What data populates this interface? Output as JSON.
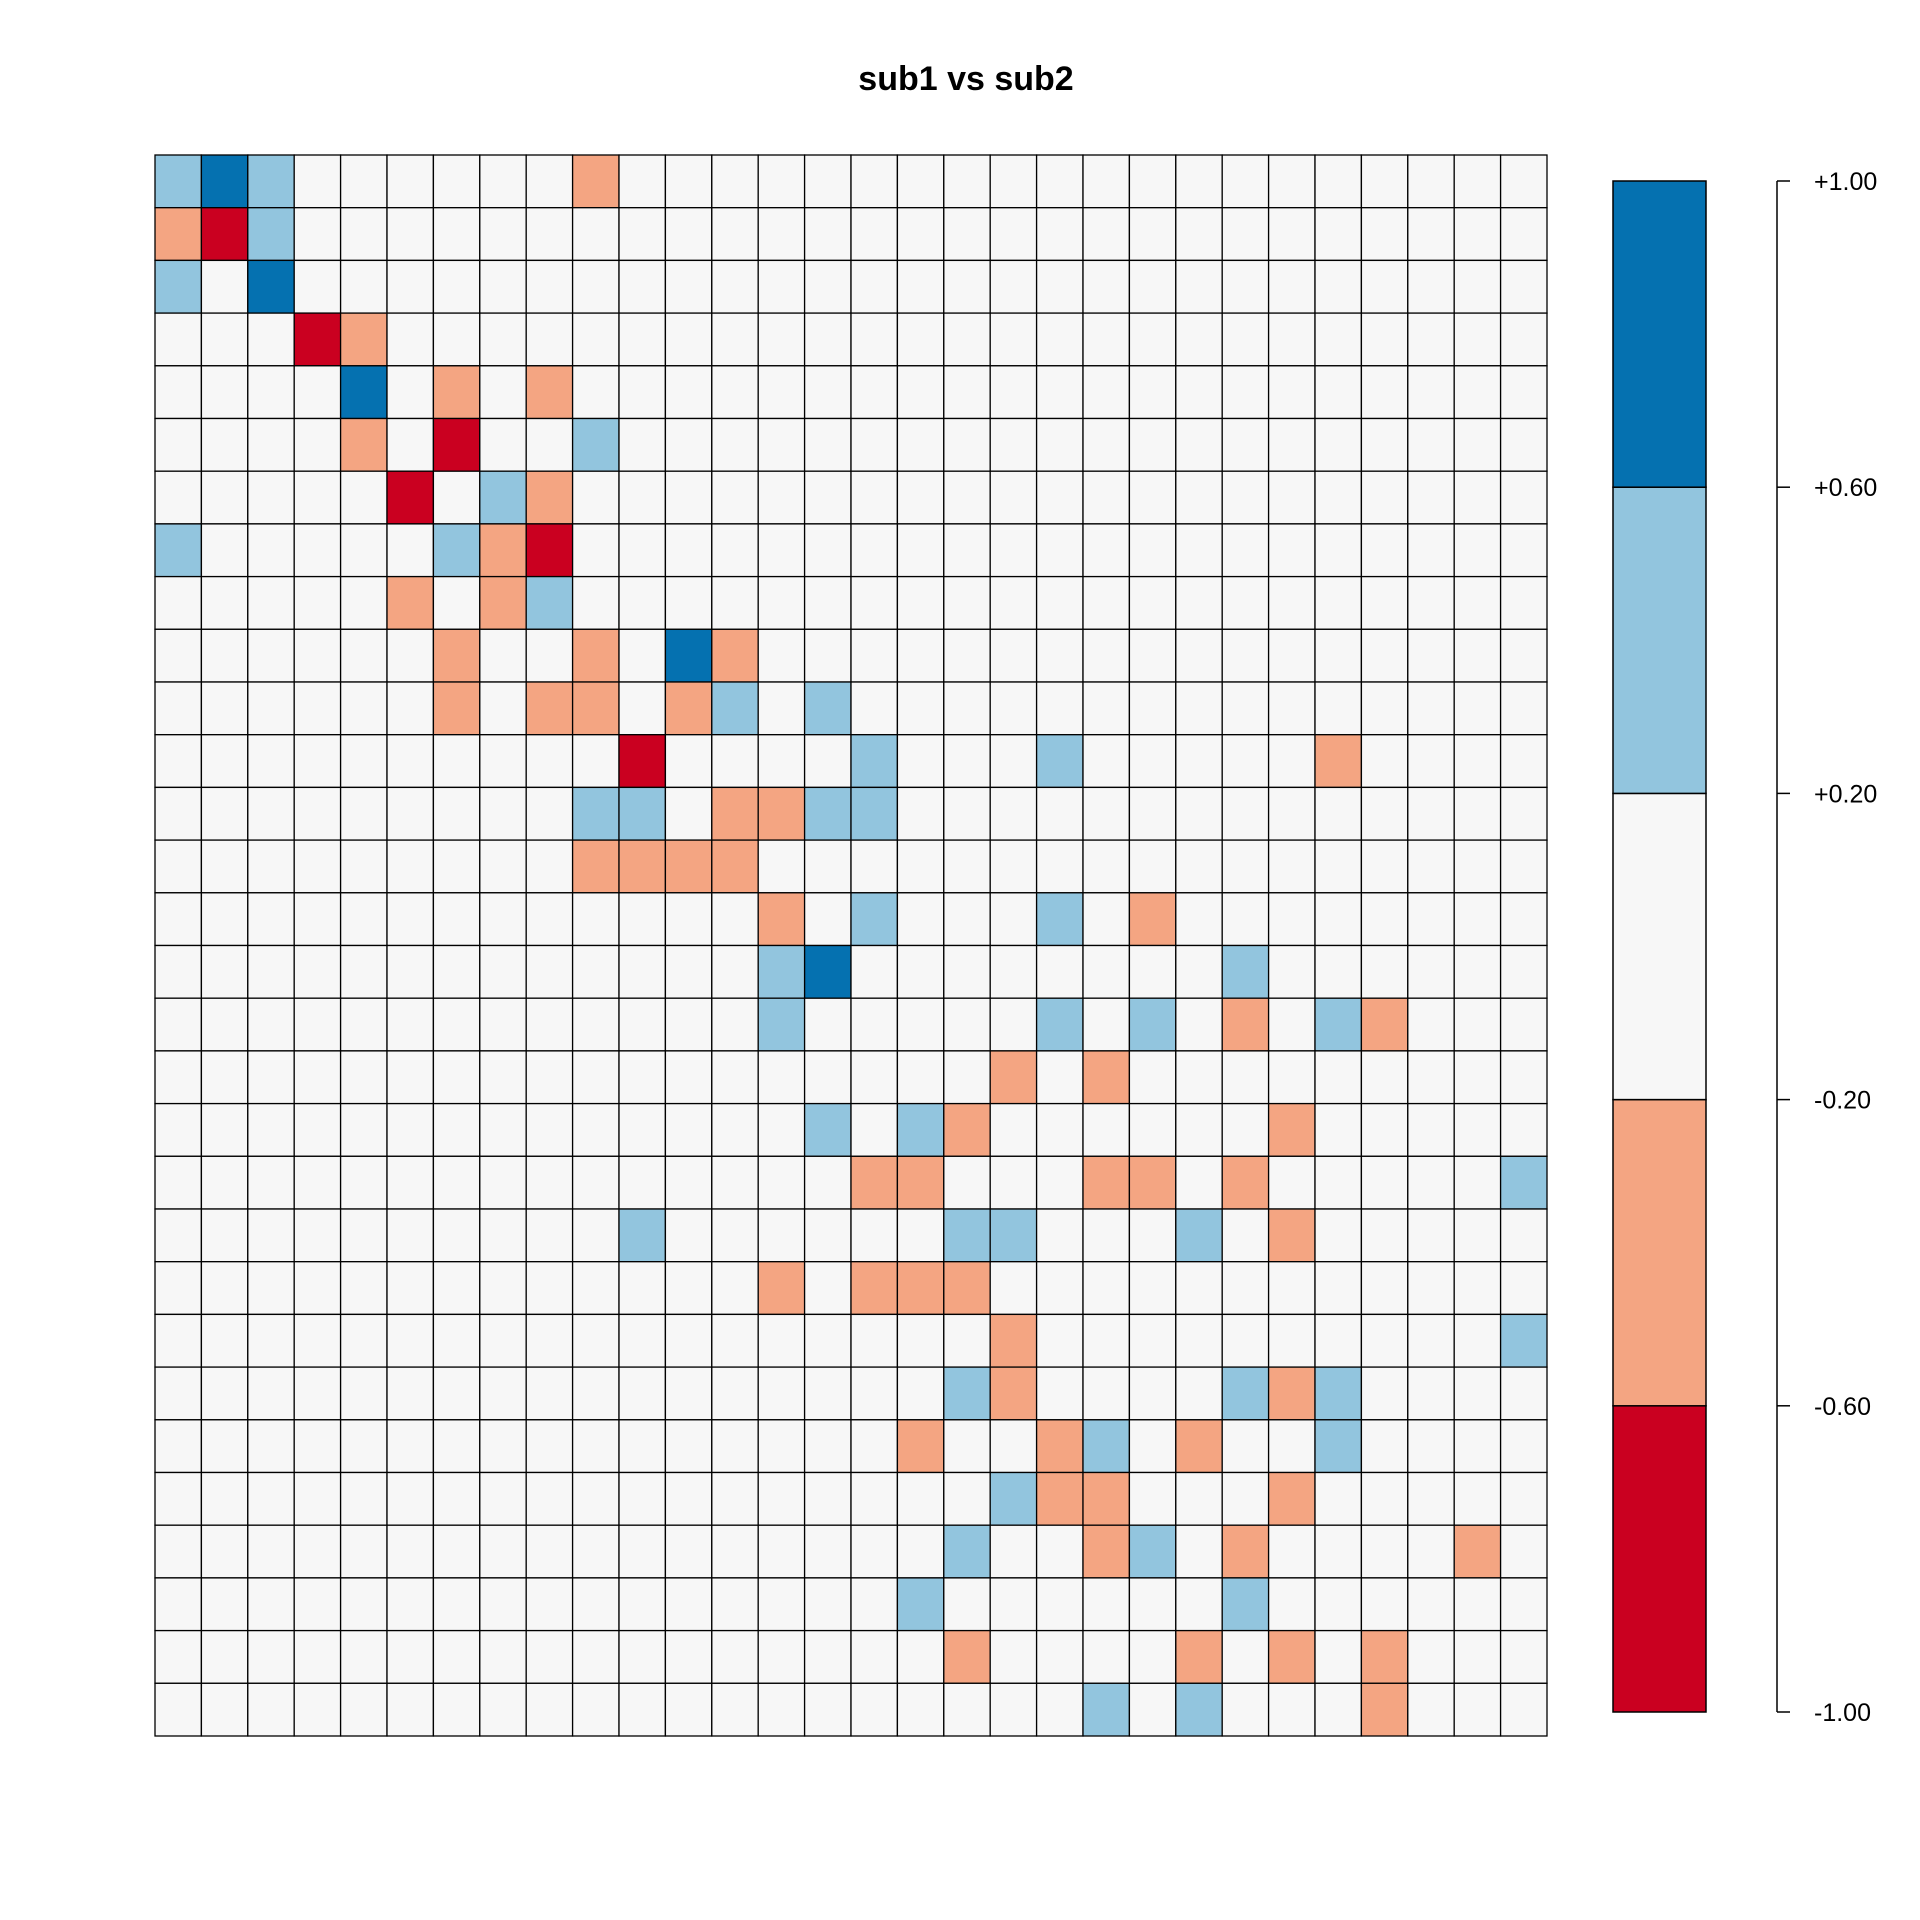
{
  "chart_data": {
    "type": "heatmap",
    "title": "sub1 vs sub2",
    "rows": 30,
    "cols": 30,
    "levels": [
      {
        "from": -1.0,
        "to": -0.6,
        "color": "#CA0020"
      },
      {
        "from": -0.6,
        "to": -0.2,
        "color": "#F4A582"
      },
      {
        "from": -0.2,
        "to": 0.2,
        "color": "#F7F7F7"
      },
      {
        "from": 0.2,
        "to": 0.6,
        "color": "#92C5DE"
      },
      {
        "from": 0.6,
        "to": 1.0,
        "color": "#0571B0"
      }
    ],
    "matrix": [
      [
        0.4,
        0.8,
        0.4,
        0,
        0,
        0,
        0,
        0,
        0,
        -0.4,
        0,
        0,
        0,
        0,
        0,
        0,
        0,
        0,
        0,
        0,
        0,
        0,
        0,
        0,
        0,
        0,
        0,
        0,
        0,
        0
      ],
      [
        -0.4,
        -0.8,
        0.4,
        0,
        0,
        0,
        0,
        0,
        0,
        0,
        0,
        0,
        0,
        0,
        0,
        0,
        0,
        0,
        0,
        0,
        0,
        0,
        0,
        0,
        0,
        0,
        0,
        0,
        0,
        0
      ],
      [
        0.4,
        0,
        0.8,
        0,
        0,
        0,
        0,
        0,
        0,
        0,
        0,
        0,
        0,
        0,
        0,
        0,
        0,
        0,
        0,
        0,
        0,
        0,
        0,
        0,
        0,
        0,
        0,
        0,
        0,
        0
      ],
      [
        0,
        0,
        0,
        -0.8,
        -0.4,
        0,
        0,
        0,
        0,
        0,
        0,
        0,
        0,
        0,
        0,
        0,
        0,
        0,
        0,
        0,
        0,
        0,
        0,
        0,
        0,
        0,
        0,
        0,
        0,
        0
      ],
      [
        0,
        0,
        0,
        0,
        0.8,
        0,
        -0.4,
        0,
        -0.4,
        0,
        0,
        0,
        0,
        0,
        0,
        0,
        0,
        0,
        0,
        0,
        0,
        0,
        0,
        0,
        0,
        0,
        0,
        0,
        0,
        0
      ],
      [
        0,
        0,
        0,
        0,
        -0.4,
        0,
        -0.8,
        0,
        0,
        0.4,
        0,
        0,
        0,
        0,
        0,
        0,
        0,
        0,
        0,
        0,
        0,
        0,
        0,
        0,
        0,
        0,
        0,
        0,
        0,
        0
      ],
      [
        0,
        0,
        0,
        0,
        0,
        -0.8,
        0,
        0.4,
        -0.4,
        0,
        0,
        0,
        0,
        0,
        0,
        0,
        0,
        0,
        0,
        0,
        0,
        0,
        0,
        0,
        0,
        0,
        0,
        0,
        0,
        0
      ],
      [
        0.4,
        0,
        0,
        0,
        0,
        0,
        0.4,
        -0.4,
        -0.8,
        0,
        0,
        0,
        0,
        0,
        0,
        0,
        0,
        0,
        0,
        0,
        0,
        0,
        0,
        0,
        0,
        0,
        0,
        0,
        0,
        0
      ],
      [
        0,
        0,
        0,
        0,
        0,
        -0.4,
        0,
        -0.4,
        0.4,
        0,
        0,
        0,
        0,
        0,
        0,
        0,
        0,
        0,
        0,
        0,
        0,
        0,
        0,
        0,
        0,
        0,
        0,
        0,
        0,
        0
      ],
      [
        0,
        0,
        0,
        0,
        0,
        0,
        -0.4,
        0,
        0,
        -0.4,
        0,
        0.8,
        -0.4,
        0,
        0,
        0,
        0,
        0,
        0,
        0,
        0,
        0,
        0,
        0,
        0,
        0,
        0,
        0,
        0,
        0
      ],
      [
        0,
        0,
        0,
        0,
        0,
        0,
        -0.4,
        0,
        -0.4,
        -0.4,
        0,
        -0.4,
        0.4,
        0,
        0.4,
        0,
        0,
        0,
        0,
        0,
        0,
        0,
        0,
        0,
        0,
        0,
        0,
        0,
        0,
        0
      ],
      [
        0,
        0,
        0,
        0,
        0,
        0,
        0,
        0,
        0,
        0,
        -0.8,
        0,
        0,
        0,
        0,
        0.4,
        0,
        0,
        0,
        0.4,
        0,
        0,
        0,
        0,
        0,
        -0.4,
        0,
        0,
        0,
        0
      ],
      [
        0,
        0,
        0,
        0,
        0,
        0,
        0,
        0,
        0,
        0.4,
        0.4,
        0,
        -0.4,
        -0.4,
        0.4,
        0.4,
        0,
        0,
        0,
        0,
        0,
        0,
        0,
        0,
        0,
        0,
        0,
        0,
        0,
        0
      ],
      [
        0,
        0,
        0,
        0,
        0,
        0,
        0,
        0,
        0,
        -0.4,
        -0.4,
        -0.4,
        -0.4,
        0,
        0,
        0,
        0,
        0,
        0,
        0,
        0,
        0,
        0,
        0,
        0,
        0,
        0,
        0,
        0,
        0
      ],
      [
        0,
        0,
        0,
        0,
        0,
        0,
        0,
        0,
        0,
        0,
        0,
        0,
        0,
        -0.4,
        0,
        0.4,
        0,
        0,
        0,
        0.4,
        0,
        -0.4,
        0,
        0,
        0,
        0,
        0,
        0,
        0,
        0
      ],
      [
        0,
        0,
        0,
        0,
        0,
        0,
        0,
        0,
        0,
        0,
        0,
        0,
        0,
        0.4,
        0.8,
        0,
        0,
        0,
        0,
        0,
        0,
        0,
        0,
        0.4,
        0,
        0,
        0,
        0,
        0,
        0
      ],
      [
        0,
        0,
        0,
        0,
        0,
        0,
        0,
        0,
        0,
        0,
        0,
        0,
        0,
        0.4,
        0,
        0,
        0,
        0,
        0,
        0.4,
        0,
        0.4,
        0,
        -0.4,
        0,
        0.4,
        -0.4,
        0,
        0,
        0
      ],
      [
        0,
        0,
        0,
        0,
        0,
        0,
        0,
        0,
        0,
        0,
        0,
        0,
        0,
        0,
        0,
        0,
        0,
        0,
        -0.4,
        0,
        -0.4,
        0,
        0,
        0,
        0,
        0,
        0,
        0,
        0,
        0
      ],
      [
        0,
        0,
        0,
        0,
        0,
        0,
        0,
        0,
        0,
        0,
        0,
        0,
        0,
        0,
        0.4,
        0,
        0.4,
        -0.4,
        0,
        0,
        0,
        0,
        0,
        0,
        -0.4,
        0,
        0,
        0,
        0,
        0
      ],
      [
        0,
        0,
        0,
        0,
        0,
        0,
        0,
        0,
        0,
        0,
        0,
        0,
        0,
        0,
        0,
        -0.4,
        -0.4,
        0,
        0,
        0,
        -0.4,
        -0.4,
        0,
        -0.4,
        0,
        0,
        0,
        0,
        0,
        0.4
      ],
      [
        0,
        0,
        0,
        0,
        0,
        0,
        0,
        0,
        0,
        0,
        0.4,
        0,
        0,
        0,
        0,
        0,
        0,
        0.4,
        0.4,
        0,
        0,
        0,
        0.4,
        0,
        -0.4,
        0,
        0,
        0,
        0,
        0
      ],
      [
        0,
        0,
        0,
        0,
        0,
        0,
        0,
        0,
        0,
        0,
        0,
        0,
        0,
        -0.4,
        0,
        -0.4,
        -0.4,
        -0.4,
        0,
        0,
        0,
        0,
        0,
        0,
        0,
        0,
        0,
        0,
        0,
        0
      ],
      [
        0,
        0,
        0,
        0,
        0,
        0,
        0,
        0,
        0,
        0,
        0,
        0,
        0,
        0,
        0,
        0,
        0,
        0,
        -0.4,
        0,
        0,
        0,
        0,
        0,
        0,
        0,
        0,
        0,
        0,
        0.4
      ],
      [
        0,
        0,
        0,
        0,
        0,
        0,
        0,
        0,
        0,
        0,
        0,
        0,
        0,
        0,
        0,
        0,
        0,
        0.4,
        -0.4,
        0,
        0,
        0,
        0,
        0.4,
        -0.4,
        0.4,
        0,
        0,
        0,
        0
      ],
      [
        0,
        0,
        0,
        0,
        0,
        0,
        0,
        0,
        0,
        0,
        0,
        0,
        0,
        0,
        0,
        0,
        -0.4,
        0,
        0,
        -0.4,
        0.4,
        0,
        -0.4,
        0,
        0,
        0.4,
        0,
        0,
        0,
        0
      ],
      [
        0,
        0,
        0,
        0,
        0,
        0,
        0,
        0,
        0,
        0,
        0,
        0,
        0,
        0,
        0,
        0,
        0,
        0,
        0.4,
        -0.4,
        -0.4,
        0,
        0,
        0,
        -0.4,
        0,
        0,
        0,
        0,
        0
      ],
      [
        0,
        0,
        0,
        0,
        0,
        0,
        0,
        0,
        0,
        0,
        0,
        0,
        0,
        0,
        0,
        0,
        0,
        0.4,
        0,
        0,
        -0.4,
        0.4,
        0,
        -0.4,
        0,
        0,
        0,
        0,
        -0.4,
        0
      ],
      [
        0,
        0,
        0,
        0,
        0,
        0,
        0,
        0,
        0,
        0,
        0,
        0,
        0,
        0,
        0,
        0,
        0.4,
        0,
        0,
        0,
        0,
        0,
        0,
        0.4,
        0,
        0,
        0,
        0,
        0,
        0
      ],
      [
        0,
        0,
        0,
        0,
        0,
        0,
        0,
        0,
        0,
        0,
        0,
        0,
        0,
        0,
        0,
        0,
        0,
        -0.4,
        0,
        0,
        0,
        0,
        -0.4,
        0,
        -0.4,
        0,
        -0.4,
        0,
        0,
        0
      ],
      [
        0,
        0,
        0,
        0,
        0,
        0,
        0,
        0,
        0,
        0,
        0,
        0,
        0,
        0,
        0,
        0,
        0,
        0,
        0,
        0,
        0.4,
        0,
        0.4,
        0,
        0,
        0,
        -0.4,
        0,
        0,
        0
      ]
    ],
    "colorbar": {
      "range": [
        -1.0,
        1.0
      ],
      "ticks": [
        1.0,
        0.6,
        0.2,
        -0.2,
        -0.6,
        -1.0
      ],
      "tick_labels": [
        "+1.00",
        "+0.60",
        "+0.20",
        "-0.20",
        "-0.60",
        "-1.00"
      ]
    },
    "legend_placement": "right"
  }
}
